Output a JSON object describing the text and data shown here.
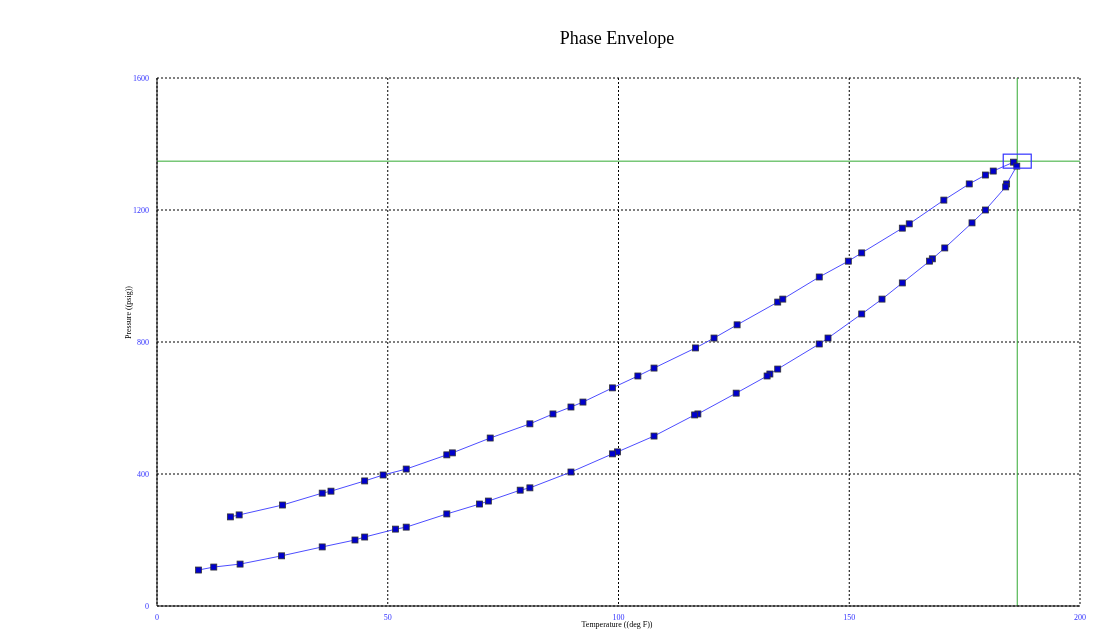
{
  "chart_data": {
    "type": "line",
    "title": "Phase Envelope",
    "xlabel": "Temperature ((deg F))",
    "ylabel": "Pressure ((psig))",
    "xlim": [
      0,
      200
    ],
    "xticks": [
      0,
      50,
      100,
      150,
      200
    ],
    "ylim": [
      0,
      1600
    ],
    "yticks": [
      0,
      400,
      800,
      1200,
      1600
    ],
    "grid": true,
    "marker": "square",
    "line_style": "solid",
    "series": [
      {
        "color": "#4d4dff",
        "x": [
          15.9,
          17.8,
          27.2,
          35.8,
          37.7,
          45,
          49,
          54,
          62.8,
          64,
          72.2,
          80.8,
          85.8,
          89.7,
          92.3,
          98.7,
          104.2,
          107.7,
          116.7,
          120.7,
          125.7,
          134.5,
          135.6,
          143.5,
          149.8,
          152.7,
          161.5,
          163,
          170.5,
          176,
          179.5,
          181.2,
          185.6
        ],
        "values": [
          270,
          276,
          306,
          342,
          348,
          379,
          397,
          415,
          458,
          464,
          509,
          552,
          582,
          603,
          618,
          661,
          697,
          721,
          782,
          812,
          852,
          921,
          930,
          997,
          1045,
          1070,
          1145,
          1158,
          1230,
          1279,
          1306,
          1318,
          1345
        ]
      },
      {
        "color": "#4d4dff",
        "x": [
          186.3,
          184.1,
          183.9,
          179.5,
          176.6,
          170.7,
          168,
          167.4,
          161.5,
          157.1,
          152.7,
          145.4,
          143.5,
          134.5,
          132.8,
          132.2,
          125.5,
          117.2,
          116.5,
          107.7,
          99.8,
          98.7,
          89.7,
          80.8,
          78.7,
          71.8,
          69.9,
          62.8,
          54,
          51.7,
          45,
          42.9,
          35.8,
          27,
          18,
          12.3,
          9
        ],
        "values": [
          1333,
          1279,
          1270,
          1200,
          1161,
          1085,
          1052,
          1045,
          979,
          930,
          885,
          812,
          794,
          718,
          703,
          697,
          645,
          582,
          579,
          515,
          467,
          461,
          406,
          358,
          351,
          318,
          309,
          279,
          239,
          233,
          209,
          200,
          179,
          152,
          127,
          118,
          109
        ]
      },
      {
        "type": "scatter",
        "color": "#3333ff",
        "marker": "square",
        "x": [
          186.4
        ],
        "values": [
          1348
        ]
      }
    ],
    "ref_lines": [
      {
        "axis": "x",
        "value": 186.4,
        "color": "#33aa33"
      },
      {
        "axis": "y",
        "value": 1348,
        "color": "#33aa33"
      }
    ]
  }
}
